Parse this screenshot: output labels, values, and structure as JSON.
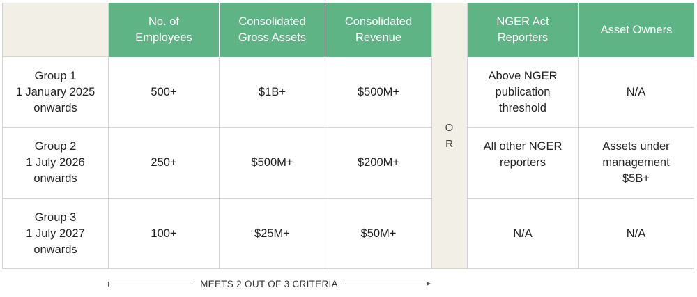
{
  "headers": {
    "corner": "",
    "employees": "No. of\nEmployees",
    "gross_assets": "Consolidated\nGross Assets",
    "revenue": "Consolidated\nRevenue",
    "nger": "NGER Act\nReporters",
    "asset_owners": "Asset Owners"
  },
  "or_letters": [
    "O",
    "R"
  ],
  "rows": [
    {
      "group": "Group 1\n1 January 2025\nonwards",
      "employees": "500+",
      "gross_assets": "$1B+",
      "revenue": "$500M+",
      "nger": "Above NGER\npublication\nthreshold",
      "asset_owners": "N/A"
    },
    {
      "group": "Group 2\n1 July 2026\nonwards",
      "employees": "250+",
      "gross_assets": "$500M+",
      "revenue": "$200M+",
      "nger": "All other NGER\nreporters",
      "asset_owners": "Assets under\nmanagement\n$5B+"
    },
    {
      "group": "Group 3\n1 July 2027\nonwards",
      "employees": "100+",
      "gross_assets": "$25M+",
      "revenue": "$50M+",
      "nger": "N/A",
      "asset_owners": "N/A"
    }
  ],
  "footer": {
    "criteria_label": "MEETS 2 OUT OF 3 CRITERIA"
  },
  "colors": {
    "header_green": "#5fb486",
    "beige": "#f2efe6",
    "border": "#d3d3d3"
  }
}
